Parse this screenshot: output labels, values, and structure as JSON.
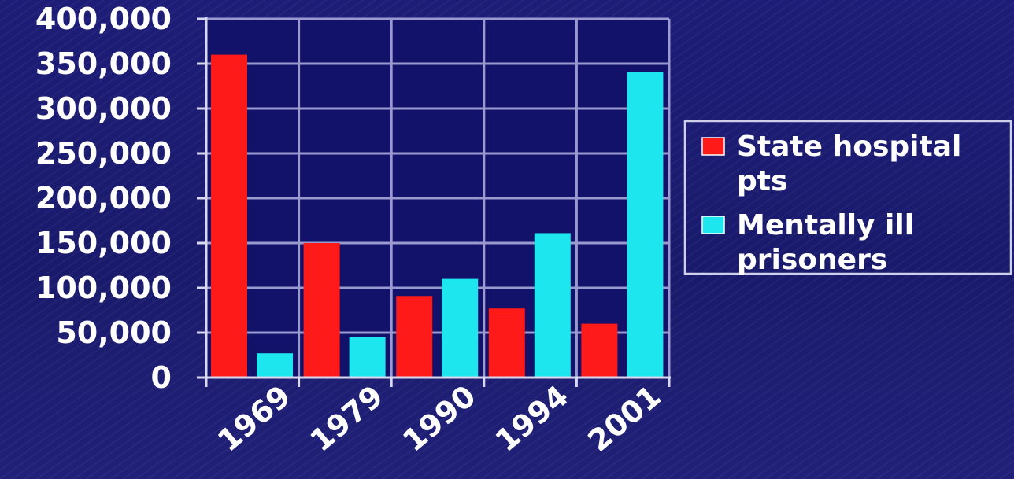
{
  "chart_data": {
    "type": "bar",
    "categories": [
      "1969",
      "1979",
      "1990",
      "1994",
      "2001"
    ],
    "series": [
      {
        "name": "State hospital pts",
        "values": [
          360000,
          150000,
          91000,
          77000,
          60000
        ],
        "color": "#ff1a1a"
      },
      {
        "name": "Mentally ill prisoners",
        "values": [
          27000,
          45000,
          110000,
          161000,
          341000
        ],
        "color": "#1ee6ee"
      }
    ],
    "ylim": [
      0,
      400000
    ],
    "yticks": [
      0,
      50000,
      100000,
      150000,
      200000,
      250000,
      300000,
      350000,
      400000
    ],
    "ytick_labels": [
      "0",
      "50,000",
      "100,000",
      "150,000",
      "200,000",
      "250,000",
      "300,000",
      "350,000",
      "400,000"
    ],
    "grid": true,
    "legend": {
      "placement": "right",
      "entries": [
        {
          "lines": [
            "State hospital",
            "pts"
          ]
        },
        {
          "lines": [
            "Mentally ill",
            "prisoners"
          ]
        }
      ]
    },
    "colors": {
      "plot_background": "#12126a",
      "grid": "#9a9ad0",
      "axis": "#d8d8f0",
      "text": "#ffffff"
    }
  }
}
